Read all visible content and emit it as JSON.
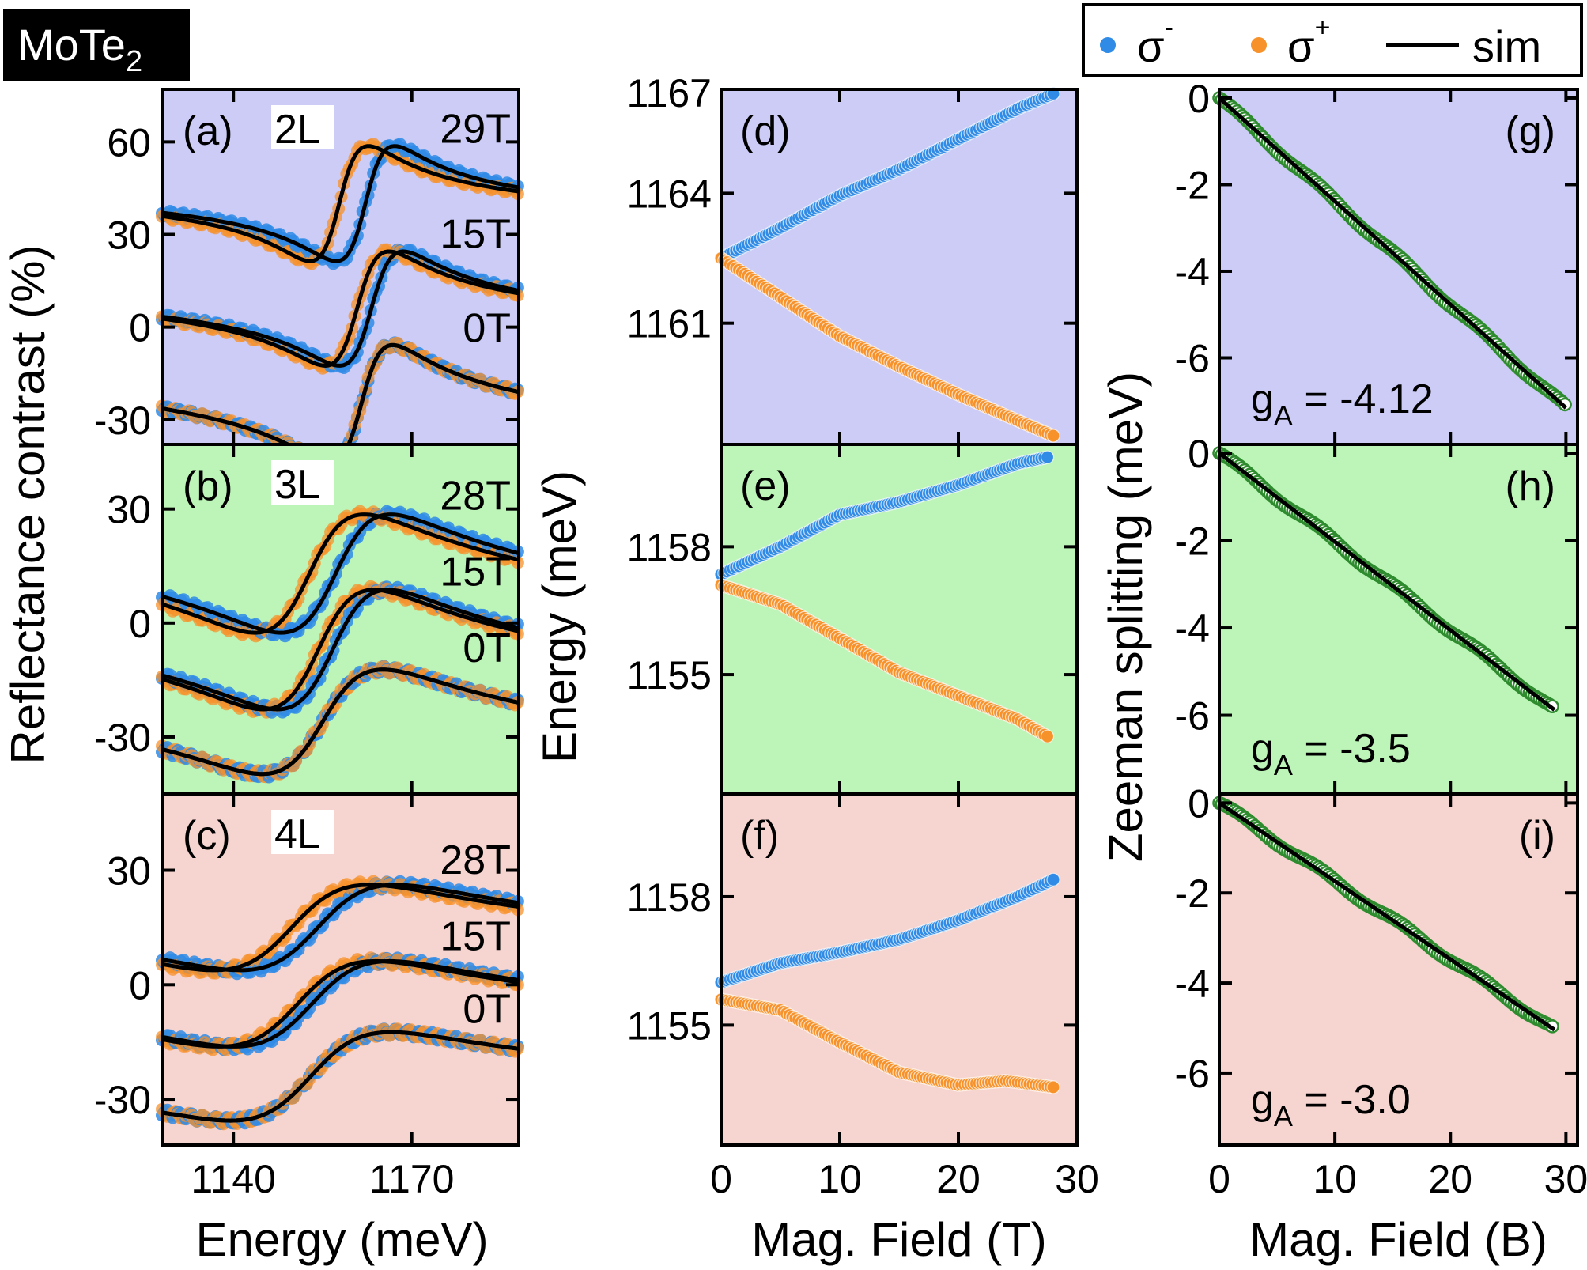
{
  "figure": {
    "material_label": "MoTe",
    "material_sub": "2",
    "colors": {
      "sigma_minus": "#2f8be6",
      "sigma_plus": "#f7922b",
      "sim": "#000000",
      "zeeman_marker": "#2e8b2e",
      "bg_2L": "#ccccf7",
      "bg_3L": "#bdf5b8",
      "bg_4L": "#f6d4cf"
    }
  },
  "legend": {
    "sigma_minus": "σ",
    "sigma_minus_sup": "-",
    "sigma_plus": "σ",
    "sigma_plus_sup": "+",
    "sim": "sim"
  },
  "chart_data": [
    {
      "id": "reflectance",
      "type": "line",
      "title": "",
      "xlabel": "Energy (meV)",
      "ylabel": "Reflectance contrast (%)",
      "x_ticks": [
        "1140",
        "1170"
      ],
      "x_tick_values": [
        1140,
        1170
      ],
      "xlim": [
        1128,
        1188
      ],
      "panels": [
        {
          "label": "(a)",
          "layer": "2L",
          "bg": "bg_2L",
          "ylim": [
            -38,
            77
          ],
          "y_ticks": [
            "60",
            "30",
            "0",
            "-30"
          ],
          "y_tick_values": [
            60,
            30,
            0,
            -30
          ],
          "curves": [
            {
              "field": "29T",
              "offset": 40,
              "E0": 1160,
              "gamma": 5.0,
              "amp": 19,
              "drift": 0.12
            },
            {
              "field": "15T",
              "offset": 6,
              "E0": 1162,
              "gamma": 5.5,
              "amp": 19,
              "drift": 0.15
            },
            {
              "field": "0T",
              "offset": -25,
              "E0": 1161.5,
              "gamma": 5.5,
              "amp": 20,
              "drift": 0.25
            }
          ]
        },
        {
          "label": "(b)",
          "layer": "3L",
          "bg": "bg_3L",
          "ylim": [
            -45,
            47
          ],
          "y_ticks": [
            "30",
            "0",
            "-30"
          ],
          "y_tick_values": [
            30,
            0,
            -30
          ],
          "curves": [
            {
              "field": "28T",
              "offset": 13,
              "E0": 1155,
              "gamma": 10,
              "amp": 17,
              "drift": 0.25
            },
            {
              "field": "15T",
              "offset": -7,
              "E0": 1155.5,
              "gamma": 10,
              "amp": 17,
              "drift": 0.22
            },
            {
              "field": "0T",
              "offset": -26,
              "E0": 1155,
              "gamma": 11,
              "amp": 15,
              "drift": 0.2
            }
          ]
        },
        {
          "label": "(c)",
          "layer": "4L",
          "bg": "bg_4L",
          "ylim": [
            -42,
            50
          ],
          "y_ticks": [
            "30",
            "0",
            "-30"
          ],
          "y_tick_values": [
            30,
            0,
            -30
          ],
          "curves": [
            {
              "field": "28T",
              "offset": 15,
              "E0": 1152,
              "gamma": 14,
              "amp": 12,
              "drift": 0.1
            },
            {
              "field": "15T",
              "offset": -5,
              "E0": 1152,
              "gamma": 14,
              "amp": 12,
              "drift": 0.1
            },
            {
              "field": "0T",
              "offset": -24,
              "E0": 1153,
              "gamma": 14,
              "amp": 12,
              "drift": 0.05
            }
          ]
        }
      ]
    },
    {
      "id": "energy-vs-field",
      "type": "scatter",
      "title": "",
      "xlabel": "Mag. Field (T)",
      "ylabel": "Energy (meV)",
      "xlim": [
        0,
        30
      ],
      "x_ticks": [
        "0",
        "10",
        "20",
        "30"
      ],
      "x_tick_values": [
        0,
        10,
        20,
        30
      ],
      "panels": [
        {
          "label": "(d)",
          "bg": "bg_2L",
          "ylim": [
            1158.2,
            1166.4
          ],
          "y_ticks": [
            "1167",
            "1164",
            "1161"
          ],
          "y_tick_values": [
            1167,
            1164,
            1161
          ],
          "series": [
            {
              "name": "σ-",
              "color": "sigma_minus",
              "B": [
                0,
                5,
                10,
                15,
                20,
                25,
                28
              ],
              "E": [
                1162.5,
                1163.2,
                1163.95,
                1164.55,
                1165.25,
                1165.95,
                1166.3
              ]
            },
            {
              "name": "σ+",
              "color": "sigma_plus",
              "B": [
                0,
                5,
                10,
                15,
                20,
                25,
                28
              ],
              "E": [
                1162.5,
                1161.6,
                1160.7,
                1160.0,
                1159.35,
                1158.75,
                1158.4
              ]
            }
          ]
        },
        {
          "label": "(e)",
          "bg": "bg_3L",
          "ylim": [
            1152.2,
            1160.4
          ],
          "y_ticks": [
            "1158",
            "1155"
          ],
          "y_tick_values": [
            1158,
            1155
          ],
          "series": [
            {
              "name": "σ-",
              "color": "sigma_minus",
              "B": [
                0,
                5,
                10,
                15,
                20,
                25,
                27.5
              ],
              "E": [
                1157.35,
                1158.0,
                1158.75,
                1159.05,
                1159.45,
                1159.95,
                1160.1
              ]
            },
            {
              "name": "σ+",
              "color": "sigma_plus",
              "B": [
                0,
                5,
                10,
                15,
                20,
                25,
                27.5
              ],
              "E": [
                1157.1,
                1156.65,
                1155.85,
                1155.05,
                1154.5,
                1153.95,
                1153.55
              ]
            }
          ]
        },
        {
          "label": "(f)",
          "bg": "bg_4L",
          "ylim": [
            1152.2,
            1160.4
          ],
          "y_ticks": [
            "1158",
            "1155"
          ],
          "y_tick_values": [
            1158,
            1155
          ],
          "series": [
            {
              "name": "σ-",
              "color": "sigma_minus",
              "B": [
                0,
                5,
                10,
                15,
                20,
                25,
                28
              ],
              "E": [
                1156.0,
                1156.45,
                1156.7,
                1157.0,
                1157.45,
                1158.0,
                1158.4
              ]
            },
            {
              "name": "σ+",
              "color": "sigma_plus",
              "B": [
                0,
                5,
                10,
                15,
                20,
                24,
                28
              ],
              "E": [
                1155.6,
                1155.35,
                1154.6,
                1153.9,
                1153.6,
                1153.7,
                1153.55
              ]
            }
          ]
        }
      ]
    },
    {
      "id": "zeeman-splitting",
      "type": "scatter",
      "title": "",
      "xlabel": "Mag. Field (B)",
      "ylabel": "Zeeman splitting (meV)",
      "xlim": [
        0,
        31
      ],
      "x_ticks": [
        "0",
        "10",
        "20",
        "30"
      ],
      "x_tick_values": [
        0,
        10,
        20,
        30
      ],
      "panels": [
        {
          "label": "(g)",
          "bg": "bg_2L",
          "g_label": "g",
          "g_sub": "A",
          "g_value": "= -4.12",
          "ylim": [
            -8.0,
            0.2
          ],
          "y_ticks": [
            "0",
            "-2",
            "-4",
            "-6"
          ],
          "y_tick_values": [
            0,
            -2,
            -4,
            -6
          ],
          "slope": -0.2385,
          "B_max": 30
        },
        {
          "label": "(h)",
          "bg": "bg_3L",
          "g_label": "g",
          "g_sub": "A",
          "g_value": "= -3.5",
          "ylim": [
            -7.8,
            0.2
          ],
          "y_ticks": [
            "0",
            "-2",
            "-4",
            "-6"
          ],
          "y_tick_values": [
            0,
            -2,
            -4,
            -6
          ],
          "slope": -0.2026,
          "B_max": 29
        },
        {
          "label": "(i)",
          "bg": "bg_4L",
          "g_label": "g",
          "g_sub": "A",
          "g_value": "= -3.0",
          "ylim": [
            -7.6,
            0.2
          ],
          "y_ticks": [
            "0",
            "-2",
            "-4",
            "-6"
          ],
          "y_tick_values": [
            0,
            -2,
            -4,
            -6
          ],
          "slope": -0.1737,
          "B_max": 29
        }
      ]
    }
  ]
}
